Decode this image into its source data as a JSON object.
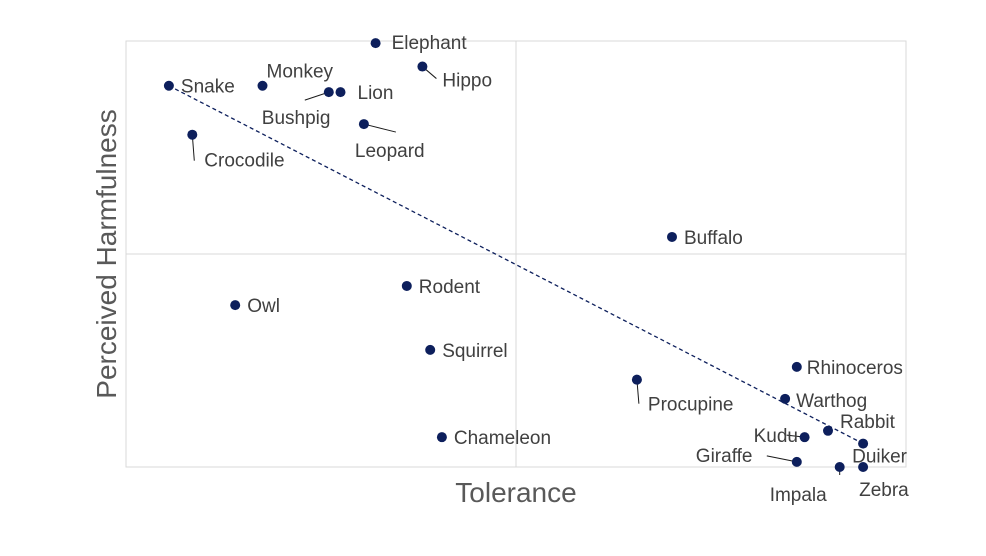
{
  "chart_data": {
    "type": "scatter",
    "xlabel": "Tolerance",
    "ylabel": "Perceived Harmfulness",
    "xlim": [
      0,
      10
    ],
    "ylim": [
      0,
      10
    ],
    "grid": true,
    "point_color": "#0d1f5c",
    "trendline": {
      "style": "dashed",
      "x": [
        0.55,
        9.45
      ],
      "y": [
        8.95,
        0.55
      ]
    },
    "points": [
      {
        "name": "Elephant",
        "x": 3.2,
        "y": 9.95
      },
      {
        "name": "Hippo",
        "x": 3.8,
        "y": 9.4
      },
      {
        "name": "Snake",
        "x": 0.55,
        "y": 8.95
      },
      {
        "name": "Monkey",
        "x": 1.75,
        "y": 8.95
      },
      {
        "name": "Bushpig",
        "x": 2.6,
        "y": 8.8
      },
      {
        "name": "Lion",
        "x": 2.75,
        "y": 8.8
      },
      {
        "name": "Leopard",
        "x": 3.05,
        "y": 8.05
      },
      {
        "name": "Crocodile",
        "x": 0.85,
        "y": 7.8
      },
      {
        "name": "Buffalo",
        "x": 7.0,
        "y": 5.4
      },
      {
        "name": "Rodent",
        "x": 3.6,
        "y": 4.25
      },
      {
        "name": "Owl",
        "x": 1.4,
        "y": 3.8
      },
      {
        "name": "Squirrel",
        "x": 3.9,
        "y": 2.75
      },
      {
        "name": "Rhinoceros",
        "x": 8.6,
        "y": 2.35
      },
      {
        "name": "Procupine",
        "x": 6.55,
        "y": 2.05
      },
      {
        "name": "Warthog",
        "x": 8.45,
        "y": 1.6
      },
      {
        "name": "Rabbit",
        "x": 9.0,
        "y": 0.85
      },
      {
        "name": "Chameleon",
        "x": 4.05,
        "y": 0.7
      },
      {
        "name": "Kudu",
        "x": 8.7,
        "y": 0.7
      },
      {
        "name": "Duiker",
        "x": 9.45,
        "y": 0.55
      },
      {
        "name": "Giraffe",
        "x": 8.6,
        "y": 0.12
      },
      {
        "name": "Impala",
        "x": 9.15,
        "y": 0.0
      },
      {
        "name": "Zebra",
        "x": 9.45,
        "y": 0.0
      }
    ]
  }
}
